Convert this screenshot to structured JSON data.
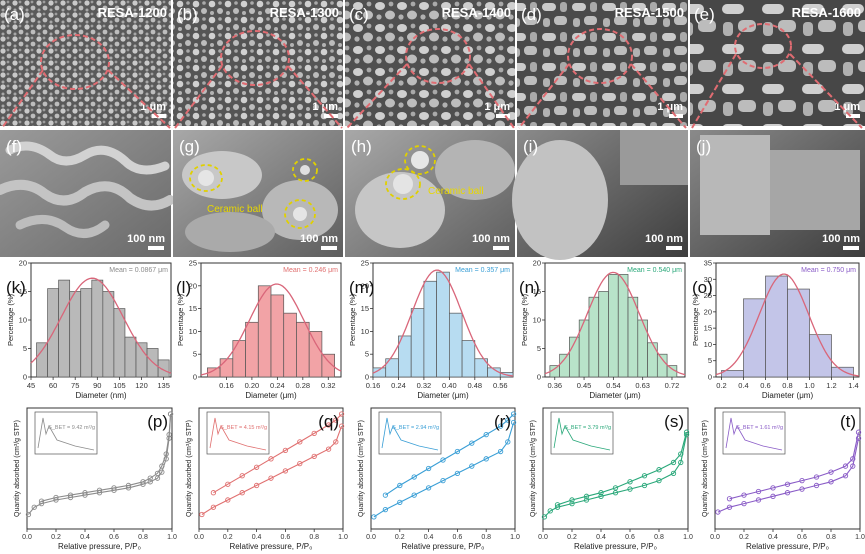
{
  "figure": {
    "sem_row1": [
      {
        "letter": "(a)",
        "sample": "RESA-1200",
        "scale": "1 μm"
      },
      {
        "letter": "(b)",
        "sample": "RESA-1300",
        "scale": "1 μm"
      },
      {
        "letter": "(c)",
        "sample": "RESA-1400",
        "scale": "1 μm"
      },
      {
        "letter": "(d)",
        "sample": "RESA-1500",
        "scale": "1 μm"
      },
      {
        "letter": "(e)",
        "sample": "RESA-1600",
        "scale": "1 μm"
      }
    ],
    "sem_row2": [
      {
        "letter": "(f)",
        "scale": "100 nm",
        "note": ""
      },
      {
        "letter": "(g)",
        "scale": "100 nm",
        "note": "Ceramic ball"
      },
      {
        "letter": "(h)",
        "scale": "100 nm",
        "note": "Ceramic ball"
      },
      {
        "letter": "(i)",
        "scale": "100 nm",
        "note": ""
      },
      {
        "letter": "(j)",
        "scale": "100 nm",
        "note": ""
      }
    ],
    "colors": {
      "gray": "#8c8c8c",
      "red": "#e07070",
      "blue": "#3a9fd6",
      "green": "#2aa87a",
      "purple": "#8a5cc7",
      "fit": "#d9667a",
      "dashed_red": "#e06c72",
      "dashed_yellow": "#e0d000"
    }
  },
  "chart_data": [
    {
      "type": "bar",
      "panel": "(k)",
      "color": "gray",
      "title": "Mean = 0.0867 μm",
      "xlabel": "Diameter (nm)",
      "ylabel": "Percentage (%)",
      "xlim": [
        45,
        140
      ],
      "ylim": [
        0,
        20
      ],
      "bin_width": 7.5,
      "bins": [
        52.5,
        60,
        67.5,
        75,
        82.5,
        90,
        97.5,
        105,
        112.5,
        120,
        127.5,
        135
      ],
      "values": [
        6,
        15.5,
        17,
        15,
        15.5,
        17,
        15,
        12,
        7,
        6,
        5,
        3
      ],
      "xticks": [
        45,
        60,
        75,
        90,
        105,
        120,
        135
      ],
      "xtick_labels": [
        "45",
        "60",
        "75",
        "90",
        "105",
        "120",
        "135"
      ],
      "yticks": [
        0,
        5,
        10,
        15,
        20
      ],
      "ytick_labels": [
        "0",
        "5",
        "10",
        "15",
        "20"
      ]
    },
    {
      "type": "bar",
      "panel": "(l)",
      "color": "red",
      "title": "Mean = 0.246 μm",
      "xlabel": "Diameter (μm)",
      "ylabel": "Percentage (%)",
      "xlim": [
        0.12,
        0.34
      ],
      "ylim": [
        0,
        25
      ],
      "bin_width": 0.02,
      "bins": [
        0.14,
        0.16,
        0.18,
        0.2,
        0.22,
        0.24,
        0.26,
        0.28,
        0.3,
        0.32
      ],
      "values": [
        2,
        4,
        8,
        12,
        20,
        18,
        14,
        12,
        10,
        5
      ],
      "xticks": [
        0.16,
        0.2,
        0.24,
        0.28,
        0.32
      ],
      "xtick_labels": [
        "0.16",
        "0.20",
        "0.24",
        "0.28",
        "0.32"
      ],
      "yticks": [
        0,
        5,
        10,
        15,
        20,
        25
      ],
      "ytick_labels": [
        "0",
        "5",
        "10",
        "15",
        "20",
        "25"
      ]
    },
    {
      "type": "bar",
      "panel": "(m)",
      "color": "blue",
      "title": "Mean = 0.357 μm",
      "xlabel": "Diameter (μm)",
      "ylabel": "Percentage (%)",
      "xlim": [
        0.16,
        0.6
      ],
      "ylim": [
        0,
        25
      ],
      "bin_width": 0.04,
      "bins": [
        0.18,
        0.22,
        0.26,
        0.3,
        0.34,
        0.38,
        0.42,
        0.46,
        0.5,
        0.54,
        0.58
      ],
      "values": [
        2,
        4,
        9,
        15,
        21,
        23,
        14,
        8,
        4,
        2,
        1
      ],
      "xticks": [
        0.16,
        0.24,
        0.32,
        0.4,
        0.48,
        0.56
      ],
      "xtick_labels": [
        "0.16",
        "0.24",
        "0.32",
        "0.40",
        "0.48",
        "0.56"
      ],
      "yticks": [
        0,
        5,
        10,
        15,
        20,
        25
      ],
      "ytick_labels": [
        "0",
        "5",
        "10",
        "15",
        "20",
        "25"
      ]
    },
    {
      "type": "bar",
      "panel": "(n)",
      "color": "green",
      "title": "Mean = 0.540 μm",
      "xlabel": "Diameter (μm)",
      "ylabel": "Percentage (%)",
      "xlim": [
        0.33,
        0.76
      ],
      "ylim": [
        0,
        20
      ],
      "bin_width": 0.03,
      "bins": [
        0.36,
        0.39,
        0.42,
        0.45,
        0.48,
        0.51,
        0.54,
        0.57,
        0.6,
        0.63,
        0.66,
        0.69,
        0.72
      ],
      "values": [
        2,
        4,
        7,
        10,
        14,
        15,
        18,
        18,
        14,
        10,
        6,
        4,
        2
      ],
      "xticks": [
        0.36,
        0.45,
        0.54,
        0.63,
        0.72
      ],
      "xtick_labels": [
        "0.36",
        "0.45",
        "0.54",
        "0.63",
        "0.72"
      ],
      "yticks": [
        0,
        5,
        10,
        15,
        20
      ],
      "ytick_labels": [
        "0",
        "5",
        "10",
        "15",
        "20"
      ]
    },
    {
      "type": "bar",
      "panel": "(o)",
      "color": "purple",
      "title": "Mean = 0.750 μm",
      "xlabel": "Diameter (μm)",
      "ylabel": "Percentage (%)",
      "xlim": [
        0.15,
        1.45
      ],
      "ylim": [
        0,
        35
      ],
      "bin_width": 0.2,
      "bins": [
        0.3,
        0.5,
        0.7,
        0.9,
        1.1,
        1.3
      ],
      "values": [
        2,
        24,
        31,
        27,
        13,
        3
      ],
      "xticks": [
        0.2,
        0.4,
        0.6,
        0.8,
        1.0,
        1.2,
        1.4
      ],
      "xtick_labels": [
        "0.2",
        "0.4",
        "0.6",
        "0.8",
        "1.0",
        "1.2",
        "1.4"
      ],
      "yticks": [
        0,
        5,
        10,
        15,
        20,
        25,
        30,
        35
      ],
      "ytick_labels": [
        "0",
        "5",
        "10",
        "15",
        "20",
        "25",
        "30",
        "35"
      ]
    },
    {
      "type": "line",
      "panel": "(p)",
      "color": "gray",
      "xlabel": "Relative pressure, P/P₀",
      "ylabel": "Quantity absorbed (cm³/g STP)",
      "inset_label": "S_BET = 9.42 m²/g",
      "xlim": [
        0,
        1.0
      ],
      "ylim": [
        0,
        1
      ],
      "xticks": [
        0.0,
        0.2,
        0.4,
        0.6,
        0.8,
        1.0
      ],
      "xtick_labels": [
        "0.0",
        "0.2",
        "0.4",
        "0.6",
        "0.8",
        "1.0"
      ],
      "adsorption": {
        "x": [
          0.01,
          0.05,
          0.1,
          0.2,
          0.3,
          0.4,
          0.5,
          0.6,
          0.7,
          0.8,
          0.85,
          0.9,
          0.93,
          0.96,
          0.98,
          0.99
        ],
        "y": [
          0.12,
          0.18,
          0.21,
          0.24,
          0.26,
          0.28,
          0.3,
          0.32,
          0.34,
          0.37,
          0.39,
          0.42,
          0.47,
          0.58,
          0.75,
          0.95
        ]
      },
      "desorption": {
        "x": [
          0.99,
          0.98,
          0.96,
          0.93,
          0.9,
          0.85,
          0.8,
          0.7,
          0.6,
          0.5,
          0.4,
          0.3,
          0.2,
          0.1
        ],
        "y": [
          0.95,
          0.78,
          0.62,
          0.52,
          0.46,
          0.42,
          0.39,
          0.36,
          0.34,
          0.32,
          0.3,
          0.28,
          0.26,
          0.23
        ]
      }
    },
    {
      "type": "line",
      "panel": "(q)",
      "color": "red",
      "xlabel": "Relative pressure, P/P₀",
      "ylabel": "Quantity absorbed (cm³/g STP)",
      "inset_label": "S_BET = 4.15 m²/g",
      "xlim": [
        0,
        1.0
      ],
      "ylim": [
        0,
        1
      ],
      "xticks": [
        0.0,
        0.2,
        0.4,
        0.6,
        0.8,
        1.0
      ],
      "xtick_labels": [
        "0.0",
        "0.2",
        "0.4",
        "0.6",
        "0.8",
        "1.0"
      ],
      "adsorption": {
        "x": [
          0.02,
          0.1,
          0.2,
          0.3,
          0.4,
          0.5,
          0.6,
          0.7,
          0.8,
          0.9,
          0.95,
          0.99
        ],
        "y": [
          0.12,
          0.18,
          0.24,
          0.3,
          0.36,
          0.42,
          0.48,
          0.54,
          0.6,
          0.66,
          0.72,
          0.85
        ]
      },
      "desorption": {
        "x": [
          0.99,
          0.95,
          0.9,
          0.8,
          0.7,
          0.6,
          0.5,
          0.4,
          0.3,
          0.2,
          0.1
        ],
        "y": [
          0.95,
          0.9,
          0.86,
          0.79,
          0.72,
          0.65,
          0.58,
          0.51,
          0.44,
          0.37,
          0.3
        ]
      }
    },
    {
      "type": "line",
      "panel": "(r)",
      "color": "blue",
      "xlabel": "Relative pressure, P/P₀",
      "ylabel": "Quantity absorbed (cm³/g STP)",
      "inset_label": "S_BET = 2.94 m²/g",
      "xlim": [
        0,
        1.0
      ],
      "ylim": [
        0,
        1
      ],
      "xticks": [
        0.0,
        0.2,
        0.4,
        0.6,
        0.8,
        1.0
      ],
      "xtick_labels": [
        "0.0",
        "0.2",
        "0.4",
        "0.6",
        "0.8",
        "1.0"
      ],
      "adsorption": {
        "x": [
          0.02,
          0.1,
          0.2,
          0.3,
          0.4,
          0.5,
          0.6,
          0.7,
          0.8,
          0.9,
          0.95,
          0.99
        ],
        "y": [
          0.1,
          0.16,
          0.22,
          0.28,
          0.34,
          0.4,
          0.46,
          0.52,
          0.58,
          0.64,
          0.72,
          0.88
        ]
      },
      "desorption": {
        "x": [
          0.99,
          0.95,
          0.9,
          0.8,
          0.7,
          0.6,
          0.5,
          0.4,
          0.3,
          0.2,
          0.1
        ],
        "y": [
          0.95,
          0.9,
          0.85,
          0.78,
          0.71,
          0.64,
          0.57,
          0.5,
          0.43,
          0.36,
          0.28
        ]
      }
    },
    {
      "type": "line",
      "panel": "(s)",
      "color": "green",
      "xlabel": "Relative pressure, P/P₀",
      "ylabel": "Quantity absorbed (cm³/g STP)",
      "inset_label": "S_BET = 3.79 m²/g",
      "xlim": [
        0,
        1.0
      ],
      "ylim": [
        0,
        1
      ],
      "xticks": [
        0.0,
        0.2,
        0.4,
        0.6,
        0.8,
        1.0
      ],
      "xtick_labels": [
        "0.0",
        "0.2",
        "0.4",
        "0.6",
        "0.8",
        "1.0"
      ],
      "adsorption": {
        "x": [
          0.01,
          0.05,
          0.1,
          0.2,
          0.3,
          0.4,
          0.5,
          0.6,
          0.7,
          0.8,
          0.9,
          0.95,
          0.99
        ],
        "y": [
          0.1,
          0.15,
          0.18,
          0.21,
          0.24,
          0.27,
          0.3,
          0.33,
          0.36,
          0.4,
          0.46,
          0.55,
          0.78
        ]
      },
      "desorption": {
        "x": [
          0.99,
          0.95,
          0.9,
          0.8,
          0.7,
          0.6,
          0.5,
          0.4,
          0.3,
          0.2,
          0.1
        ],
        "y": [
          0.8,
          0.62,
          0.55,
          0.49,
          0.44,
          0.39,
          0.34,
          0.3,
          0.27,
          0.24,
          0.2
        ]
      }
    },
    {
      "type": "line",
      "panel": "(t)",
      "color": "purple",
      "xlabel": "Relative pressure, P/P₀",
      "ylabel": "Quantity absorbed (cm³/g STP)",
      "inset_label": "S_BET = 1.61 m²/g",
      "xlim": [
        0,
        1.0
      ],
      "ylim": [
        0,
        1
      ],
      "xticks": [
        0.0,
        0.2,
        0.4,
        0.6,
        0.8,
        1.0
      ],
      "xtick_labels": [
        "0.0",
        "0.2",
        "0.4",
        "0.6",
        "0.8",
        "1.0"
      ],
      "adsorption": {
        "x": [
          0.02,
          0.1,
          0.2,
          0.3,
          0.4,
          0.5,
          0.6,
          0.7,
          0.8,
          0.9,
          0.95,
          0.99
        ],
        "y": [
          0.14,
          0.18,
          0.21,
          0.24,
          0.27,
          0.3,
          0.33,
          0.36,
          0.39,
          0.44,
          0.52,
          0.75
        ]
      },
      "desorption": {
        "x": [
          0.99,
          0.95,
          0.9,
          0.8,
          0.7,
          0.6,
          0.5,
          0.4,
          0.3,
          0.2,
          0.1
        ],
        "y": [
          0.8,
          0.58,
          0.52,
          0.47,
          0.43,
          0.4,
          0.37,
          0.34,
          0.31,
          0.28,
          0.25
        ]
      }
    }
  ]
}
